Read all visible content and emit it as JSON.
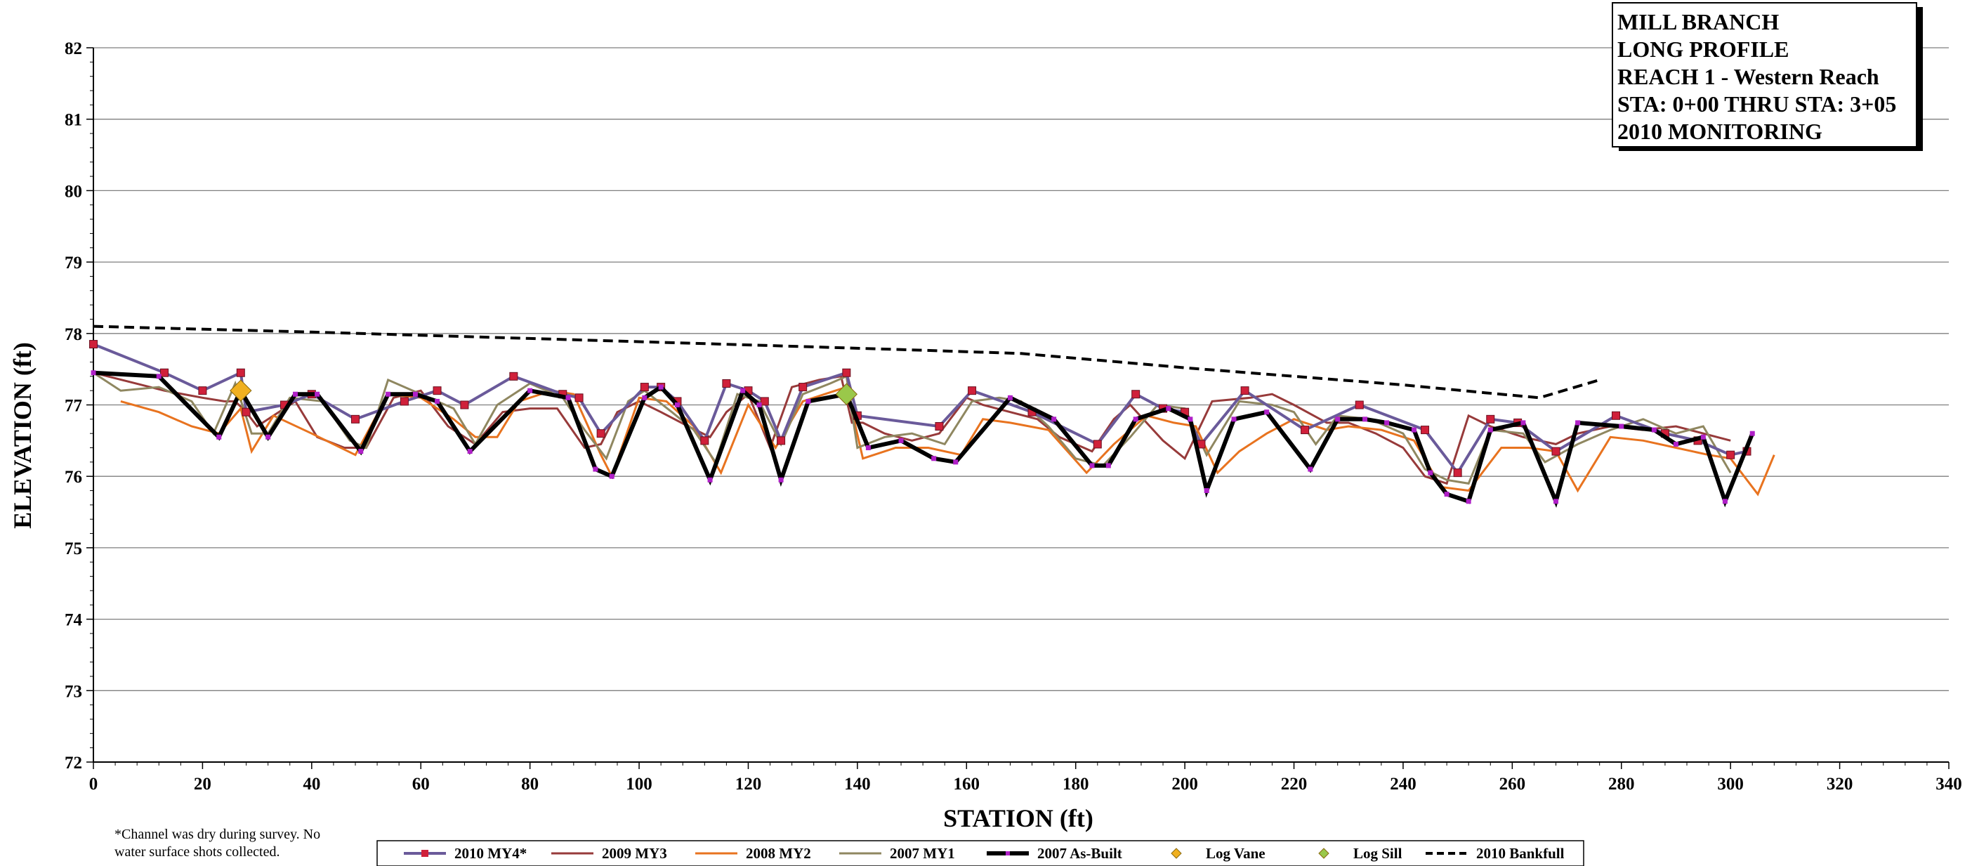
{
  "chart_data": {
    "type": "line",
    "title_box": [
      "MILL BRANCH",
      "LONG PROFILE",
      "REACH 1 - Western Reach",
      "STA: 0+00 THRU STA: 3+05",
      "2010 MONITORING"
    ],
    "xlabel": "STATION (ft)",
    "ylabel": "ELEVATION (ft)",
    "xlim": [
      0,
      340
    ],
    "ylim": [
      72,
      82
    ],
    "x_ticks": [
      0,
      20,
      40,
      60,
      80,
      100,
      120,
      140,
      160,
      180,
      200,
      220,
      240,
      260,
      280,
      300,
      320,
      340
    ],
    "y_ticks": [
      72,
      73,
      74,
      75,
      76,
      77,
      78,
      79,
      80,
      81,
      82
    ],
    "grid": "horizontal",
    "note": [
      "*Channel was dry during survey. No",
      "water surface shots collected."
    ],
    "legend_position": "bottom",
    "series": [
      {
        "name": "2010 MY4*",
        "color": "#6a5a9a",
        "marker": "square",
        "marker_color": "#d0203a",
        "x": [
          0,
          13,
          20,
          27,
          28,
          35,
          40,
          48,
          57,
          63,
          68,
          77,
          86,
          89,
          93,
          101,
          104,
          107,
          112,
          116,
          120,
          123,
          126,
          130,
          138,
          140,
          155,
          161,
          172,
          184,
          191,
          196,
          200,
          203,
          211,
          222,
          232,
          244,
          250,
          256,
          261,
          268,
          279,
          288,
          294,
          300,
          303
        ],
        "y": [
          77.85,
          77.45,
          77.2,
          77.45,
          76.9,
          77.0,
          77.15,
          76.8,
          77.05,
          77.2,
          77.0,
          77.4,
          77.15,
          77.1,
          76.6,
          77.25,
          77.25,
          77.05,
          76.5,
          77.3,
          77.2,
          77.05,
          76.5,
          77.25,
          77.45,
          76.85,
          76.7,
          77.2,
          76.9,
          76.45,
          77.15,
          76.95,
          76.9,
          76.45,
          77.2,
          76.65,
          77.0,
          76.65,
          76.05,
          76.8,
          76.75,
          76.35,
          76.85,
          76.6,
          76.5,
          76.3,
          76.35
        ]
      },
      {
        "name": "2009 MY3",
        "color": "#973a3a",
        "marker": "none",
        "x": [
          0,
          13,
          20,
          24,
          26,
          28,
          30,
          33,
          37,
          41,
          46,
          50,
          55,
          60,
          65,
          70,
          75,
          80,
          85,
          90,
          93,
          96,
          100,
          104,
          109,
          113,
          116,
          120,
          124,
          128,
          133,
          137,
          139,
          141,
          145,
          150,
          155,
          160,
          163,
          168,
          173,
          177,
          183,
          187,
          190,
          196,
          200,
          205,
          212,
          216,
          220,
          226,
          230,
          235,
          240,
          244,
          248,
          252,
          256,
          262,
          268,
          272,
          278,
          284,
          290,
          300
        ],
        "y": [
          77.45,
          77.2,
          77.1,
          77.05,
          77.05,
          76.9,
          76.7,
          76.85,
          77.05,
          76.55,
          76.4,
          76.4,
          77.1,
          77.2,
          76.7,
          76.45,
          76.9,
          76.95,
          76.95,
          76.4,
          76.45,
          76.9,
          77.05,
          76.9,
          76.7,
          76.55,
          76.9,
          77.15,
          76.4,
          77.25,
          77.35,
          77.4,
          76.75,
          76.75,
          76.6,
          76.5,
          76.6,
          77.1,
          77.0,
          76.9,
          76.8,
          76.55,
          76.35,
          76.8,
          77.0,
          76.5,
          76.25,
          77.05,
          77.1,
          77.15,
          77.0,
          76.75,
          76.75,
          76.6,
          76.4,
          76.0,
          75.9,
          76.85,
          76.7,
          76.55,
          76.45,
          76.6,
          76.7,
          76.65,
          76.7,
          76.5
        ]
      },
      {
        "name": "2008 MY2",
        "color": "#e8731f",
        "marker": "none",
        "x": [
          5,
          12,
          18,
          23,
          27,
          29,
          33,
          40,
          48,
          54,
          60,
          66,
          70,
          74,
          78,
          84,
          88,
          93,
          95,
          100,
          105,
          110,
          115,
          120,
          125,
          130,
          134,
          138,
          141,
          147,
          153,
          159,
          163,
          168,
          175,
          182,
          187,
          193,
          198,
          202,
          206,
          210,
          215,
          220,
          226,
          230,
          236,
          242,
          247,
          252,
          258,
          263,
          268,
          272,
          278,
          284,
          290,
          296,
          300,
          305,
          308
        ],
        "y": [
          77.05,
          76.9,
          76.7,
          76.6,
          76.95,
          76.35,
          76.85,
          76.6,
          76.3,
          77.15,
          77.1,
          76.8,
          76.55,
          76.55,
          77.05,
          77.2,
          77.15,
          76.3,
          76.0,
          77.1,
          77.05,
          76.7,
          76.05,
          77.0,
          76.4,
          77.05,
          77.15,
          77.25,
          76.25,
          76.4,
          76.4,
          76.3,
          76.8,
          76.75,
          76.65,
          76.05,
          76.45,
          76.85,
          76.75,
          76.7,
          76.05,
          76.35,
          76.6,
          76.8,
          76.65,
          76.7,
          76.65,
          76.5,
          75.85,
          75.8,
          76.4,
          76.4,
          76.35,
          75.8,
          76.55,
          76.5,
          76.4,
          76.3,
          76.25,
          75.75,
          76.3
        ]
      },
      {
        "name": "2007 MY1",
        "color": "#8f8760",
        "marker": "none",
        "x": [
          0,
          5,
          12,
          18,
          22,
          26,
          29,
          32,
          36,
          42,
          47,
          50,
          54,
          60,
          66,
          70,
          74,
          80,
          86,
          90,
          94,
          98,
          101,
          106,
          110,
          114,
          118,
          122,
          126,
          130,
          135,
          138,
          140,
          145,
          150,
          156,
          161,
          166,
          170,
          175,
          180,
          185,
          190,
          195,
          200,
          204,
          210,
          216,
          220,
          224,
          228,
          234,
          240,
          244,
          248,
          252,
          256,
          262,
          266,
          272,
          278,
          284,
          290,
          295,
          300
        ],
        "y": [
          77.45,
          77.2,
          77.25,
          77.05,
          76.6,
          77.3,
          76.6,
          76.6,
          77.1,
          77.05,
          76.5,
          76.4,
          77.35,
          77.15,
          76.95,
          76.45,
          77.0,
          77.3,
          77.1,
          76.65,
          76.25,
          77.05,
          77.2,
          76.9,
          76.65,
          76.2,
          77.15,
          77.05,
          76.45,
          77.15,
          77.3,
          77.4,
          76.4,
          76.55,
          76.6,
          76.45,
          77.05,
          77.1,
          77.05,
          76.7,
          76.25,
          76.15,
          76.55,
          77.0,
          76.95,
          76.3,
          77.05,
          77.0,
          76.9,
          76.45,
          76.85,
          76.8,
          76.6,
          76.1,
          75.95,
          75.9,
          76.65,
          76.6,
          76.2,
          76.45,
          76.65,
          76.8,
          76.6,
          76.7,
          76.05
        ]
      },
      {
        "name": "2007 As-Built",
        "color": "#000000",
        "marker": "small-square",
        "marker_color": "#b020c8",
        "x": [
          0,
          12,
          23,
          27,
          32,
          37,
          41,
          49,
          54,
          59,
          63,
          69,
          80,
          87,
          92,
          95,
          101,
          104,
          107,
          113,
          119,
          122,
          126,
          131,
          138,
          142,
          148,
          154,
          158,
          168,
          176,
          183,
          186,
          191,
          197,
          201,
          204,
          209,
          215,
          223,
          228,
          233,
          237,
          242,
          245,
          248,
          252,
          256,
          262,
          268,
          272,
          280,
          286,
          290,
          295,
          299,
          304
        ],
        "y": [
          77.45,
          77.4,
          76.55,
          77.2,
          76.55,
          77.15,
          77.15,
          76.35,
          77.15,
          77.15,
          77.05,
          76.35,
          77.2,
          77.1,
          76.1,
          76.0,
          77.1,
          77.25,
          77.0,
          75.95,
          77.2,
          77.0,
          75.95,
          77.05,
          77.15,
          76.4,
          76.5,
          76.25,
          76.2,
          77.1,
          76.8,
          76.15,
          76.15,
          76.8,
          76.95,
          76.8,
          75.8,
          76.8,
          76.9,
          76.1,
          76.8,
          76.8,
          76.75,
          76.65,
          76.05,
          75.75,
          75.65,
          76.65,
          76.75,
          75.65,
          76.75,
          76.7,
          76.65,
          76.45,
          76.55,
          75.65,
          76.6
        ]
      },
      {
        "name": "Log Vane",
        "color": "#f0b020",
        "marker": "diamond",
        "x": [
          27
        ],
        "y": [
          77.2
        ]
      },
      {
        "name": "Log Sill",
        "color": "#9ac84a",
        "marker": "diamond",
        "x": [
          138
        ],
        "y": [
          77.15
        ]
      },
      {
        "name": "2010 Bankfull",
        "color": "#000000",
        "marker": "none",
        "dashed": true,
        "x": [
          0,
          40,
          80,
          120,
          150,
          170,
          185,
          200,
          220,
          240,
          255,
          265,
          276
        ],
        "y": [
          78.1,
          78.02,
          77.93,
          77.84,
          77.77,
          77.72,
          77.62,
          77.52,
          77.4,
          77.28,
          77.17,
          77.1,
          77.35
        ]
      }
    ]
  }
}
